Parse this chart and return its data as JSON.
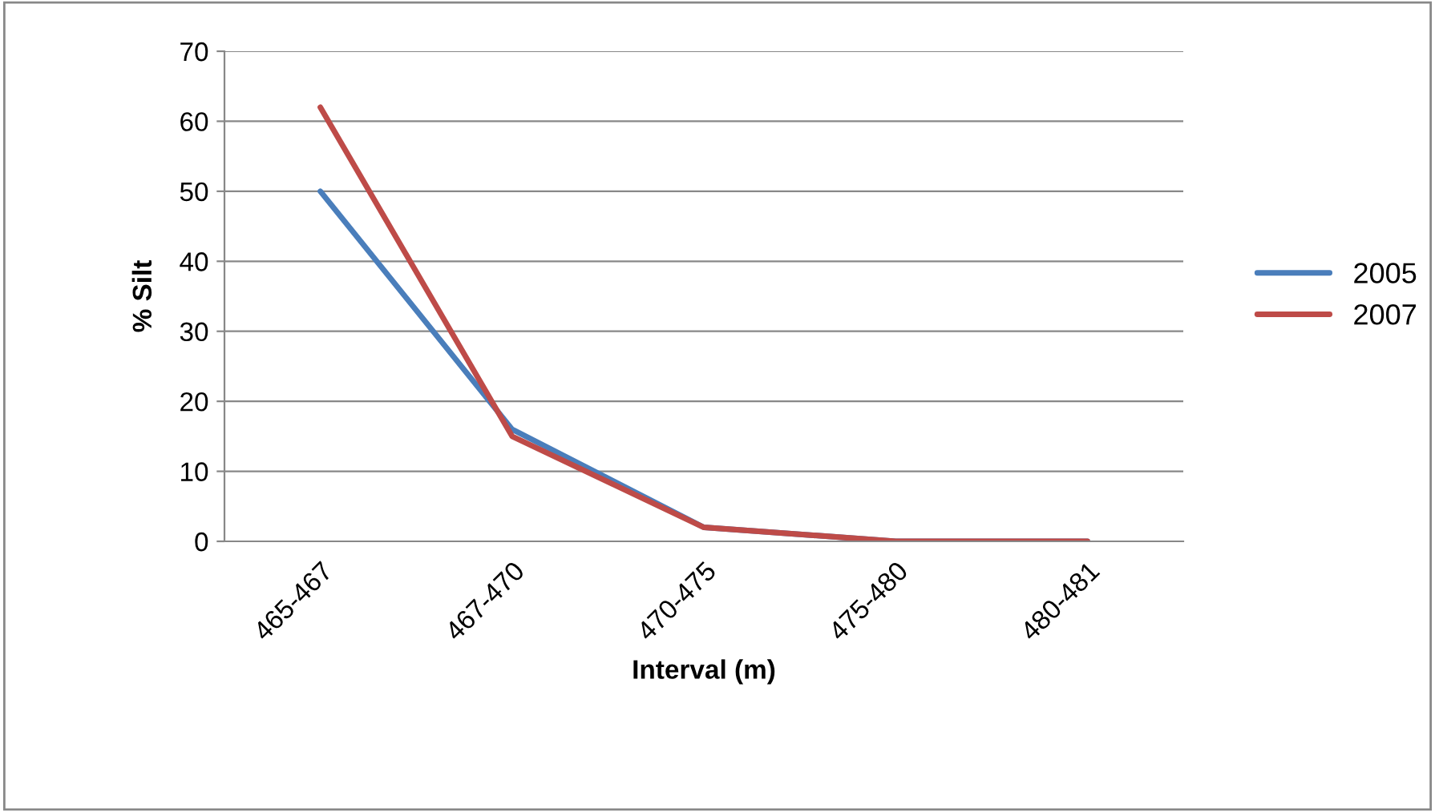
{
  "chart_data": {
    "type": "line",
    "xlabel": "Interval (m)",
    "ylabel": "% Silt",
    "categories": [
      "465-467",
      "467-470",
      "470-475",
      "475-480",
      "480-481"
    ],
    "series": [
      {
        "name": "2005",
        "color": "#4a7ebb",
        "values": [
          50,
          16,
          2,
          0,
          0
        ]
      },
      {
        "name": "2007",
        "color": "#be4b48",
        "values": [
          62,
          15,
          2,
          0,
          0
        ]
      }
    ],
    "ylim": [
      0,
      70
    ],
    "yticks": [
      0,
      10,
      20,
      30,
      40,
      50,
      60,
      70
    ],
    "grid": "y",
    "legend": "right",
    "marker": "none",
    "line_style": "solid"
  }
}
